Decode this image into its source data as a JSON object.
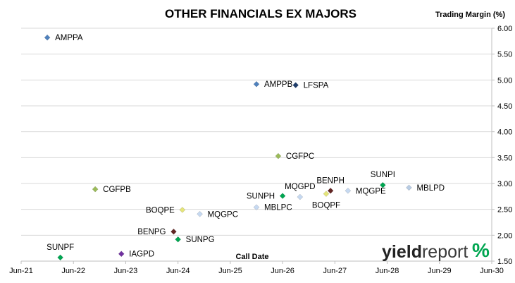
{
  "chart_data": {
    "type": "scatter",
    "title": "OTHER FINANCIALS EX MAJORS",
    "ylabel": "Trading Margin (%)",
    "xlabel": "Call Date",
    "xlim": [
      "2021-06",
      "2030-06"
    ],
    "ylim": [
      1.5,
      6.0
    ],
    "y_ticks": [
      "1.50",
      "2.00",
      "2.50",
      "3.00",
      "3.50",
      "4.00",
      "4.50",
      "5.00",
      "5.50",
      "6.00"
    ],
    "x_ticks": [
      "Jun-21",
      "Jun-22",
      "Jun-23",
      "Jun-24",
      "Jun-25",
      "Jun-26",
      "Jun-27",
      "Jun-28",
      "Jun-29",
      "Jun-30"
    ],
    "grid": "horizontal",
    "y_axis_side": "right",
    "points": [
      {
        "label": "AMPPA",
        "x": "2021-12",
        "y": 5.82,
        "color": "#4f81bd",
        "label_pos": "right"
      },
      {
        "label": "AMPPB",
        "x": "2025-12",
        "y": 4.92,
        "color": "#4f81bd",
        "label_pos": "right"
      },
      {
        "label": "LFSPA",
        "x": "2026-09",
        "y": 4.9,
        "color": "#1f3d6b",
        "label_pos": "right"
      },
      {
        "label": "CGFPC",
        "x": "2026-05",
        "y": 3.53,
        "color": "#9bbb59",
        "label_pos": "right"
      },
      {
        "label": "CGFPB",
        "x": "2022-11",
        "y": 2.89,
        "color": "#9bbb59",
        "label_pos": "right"
      },
      {
        "label": "SUNPI",
        "x": "2028-05",
        "y": 2.97,
        "color": "#00a651",
        "label_pos": "above"
      },
      {
        "label": "MBLPD",
        "x": "2028-11",
        "y": 2.92,
        "color": "#b8cce4",
        "label_pos": "right"
      },
      {
        "label": "BENPH",
        "x": "2027-05",
        "y": 2.86,
        "color": "#632523",
        "label_pos": "above"
      },
      {
        "label": "MQGPE",
        "x": "2027-09",
        "y": 2.86,
        "color": "#c6d9f1",
        "label_pos": "right"
      },
      {
        "label": "MQGPD",
        "x": "2026-10",
        "y": 2.74,
        "color": "#c6d9f1",
        "label_pos": "above"
      },
      {
        "label": "SUNPH",
        "x": "2026-06",
        "y": 2.76,
        "color": "#00a651",
        "label_pos": "left"
      },
      {
        "label": "BOQPF",
        "x": "2027-04",
        "y": 2.8,
        "color": "#e5e57a",
        "label_pos": "below"
      },
      {
        "label": "MBLPC",
        "x": "2025-12",
        "y": 2.54,
        "color": "#c6d9f1",
        "label_pos": "right"
      },
      {
        "label": "BOQPE",
        "x": "2024-07",
        "y": 2.49,
        "color": "#e5e57a",
        "label_pos": "left"
      },
      {
        "label": "MQGPC",
        "x": "2024-11",
        "y": 2.41,
        "color": "#c6d9f1",
        "label_pos": "right"
      },
      {
        "label": "BENPG",
        "x": "2024-05",
        "y": 2.07,
        "color": "#632523",
        "label_pos": "left"
      },
      {
        "label": "SUNPG",
        "x": "2024-06",
        "y": 1.92,
        "color": "#00a651",
        "label_pos": "right"
      },
      {
        "label": "SUNPF",
        "x": "2022-03",
        "y": 1.57,
        "color": "#00a651",
        "label_pos": "above"
      },
      {
        "label": "IAGPD",
        "x": "2023-05",
        "y": 1.64,
        "color": "#7030a0",
        "label_pos": "right"
      }
    ]
  },
  "logo": {
    "part1": "yield",
    "part2": "report",
    "symbol": "%"
  },
  "colors": {
    "logo_pct_top": "#00a651",
    "logo_pct_bottom": "#c00000"
  }
}
